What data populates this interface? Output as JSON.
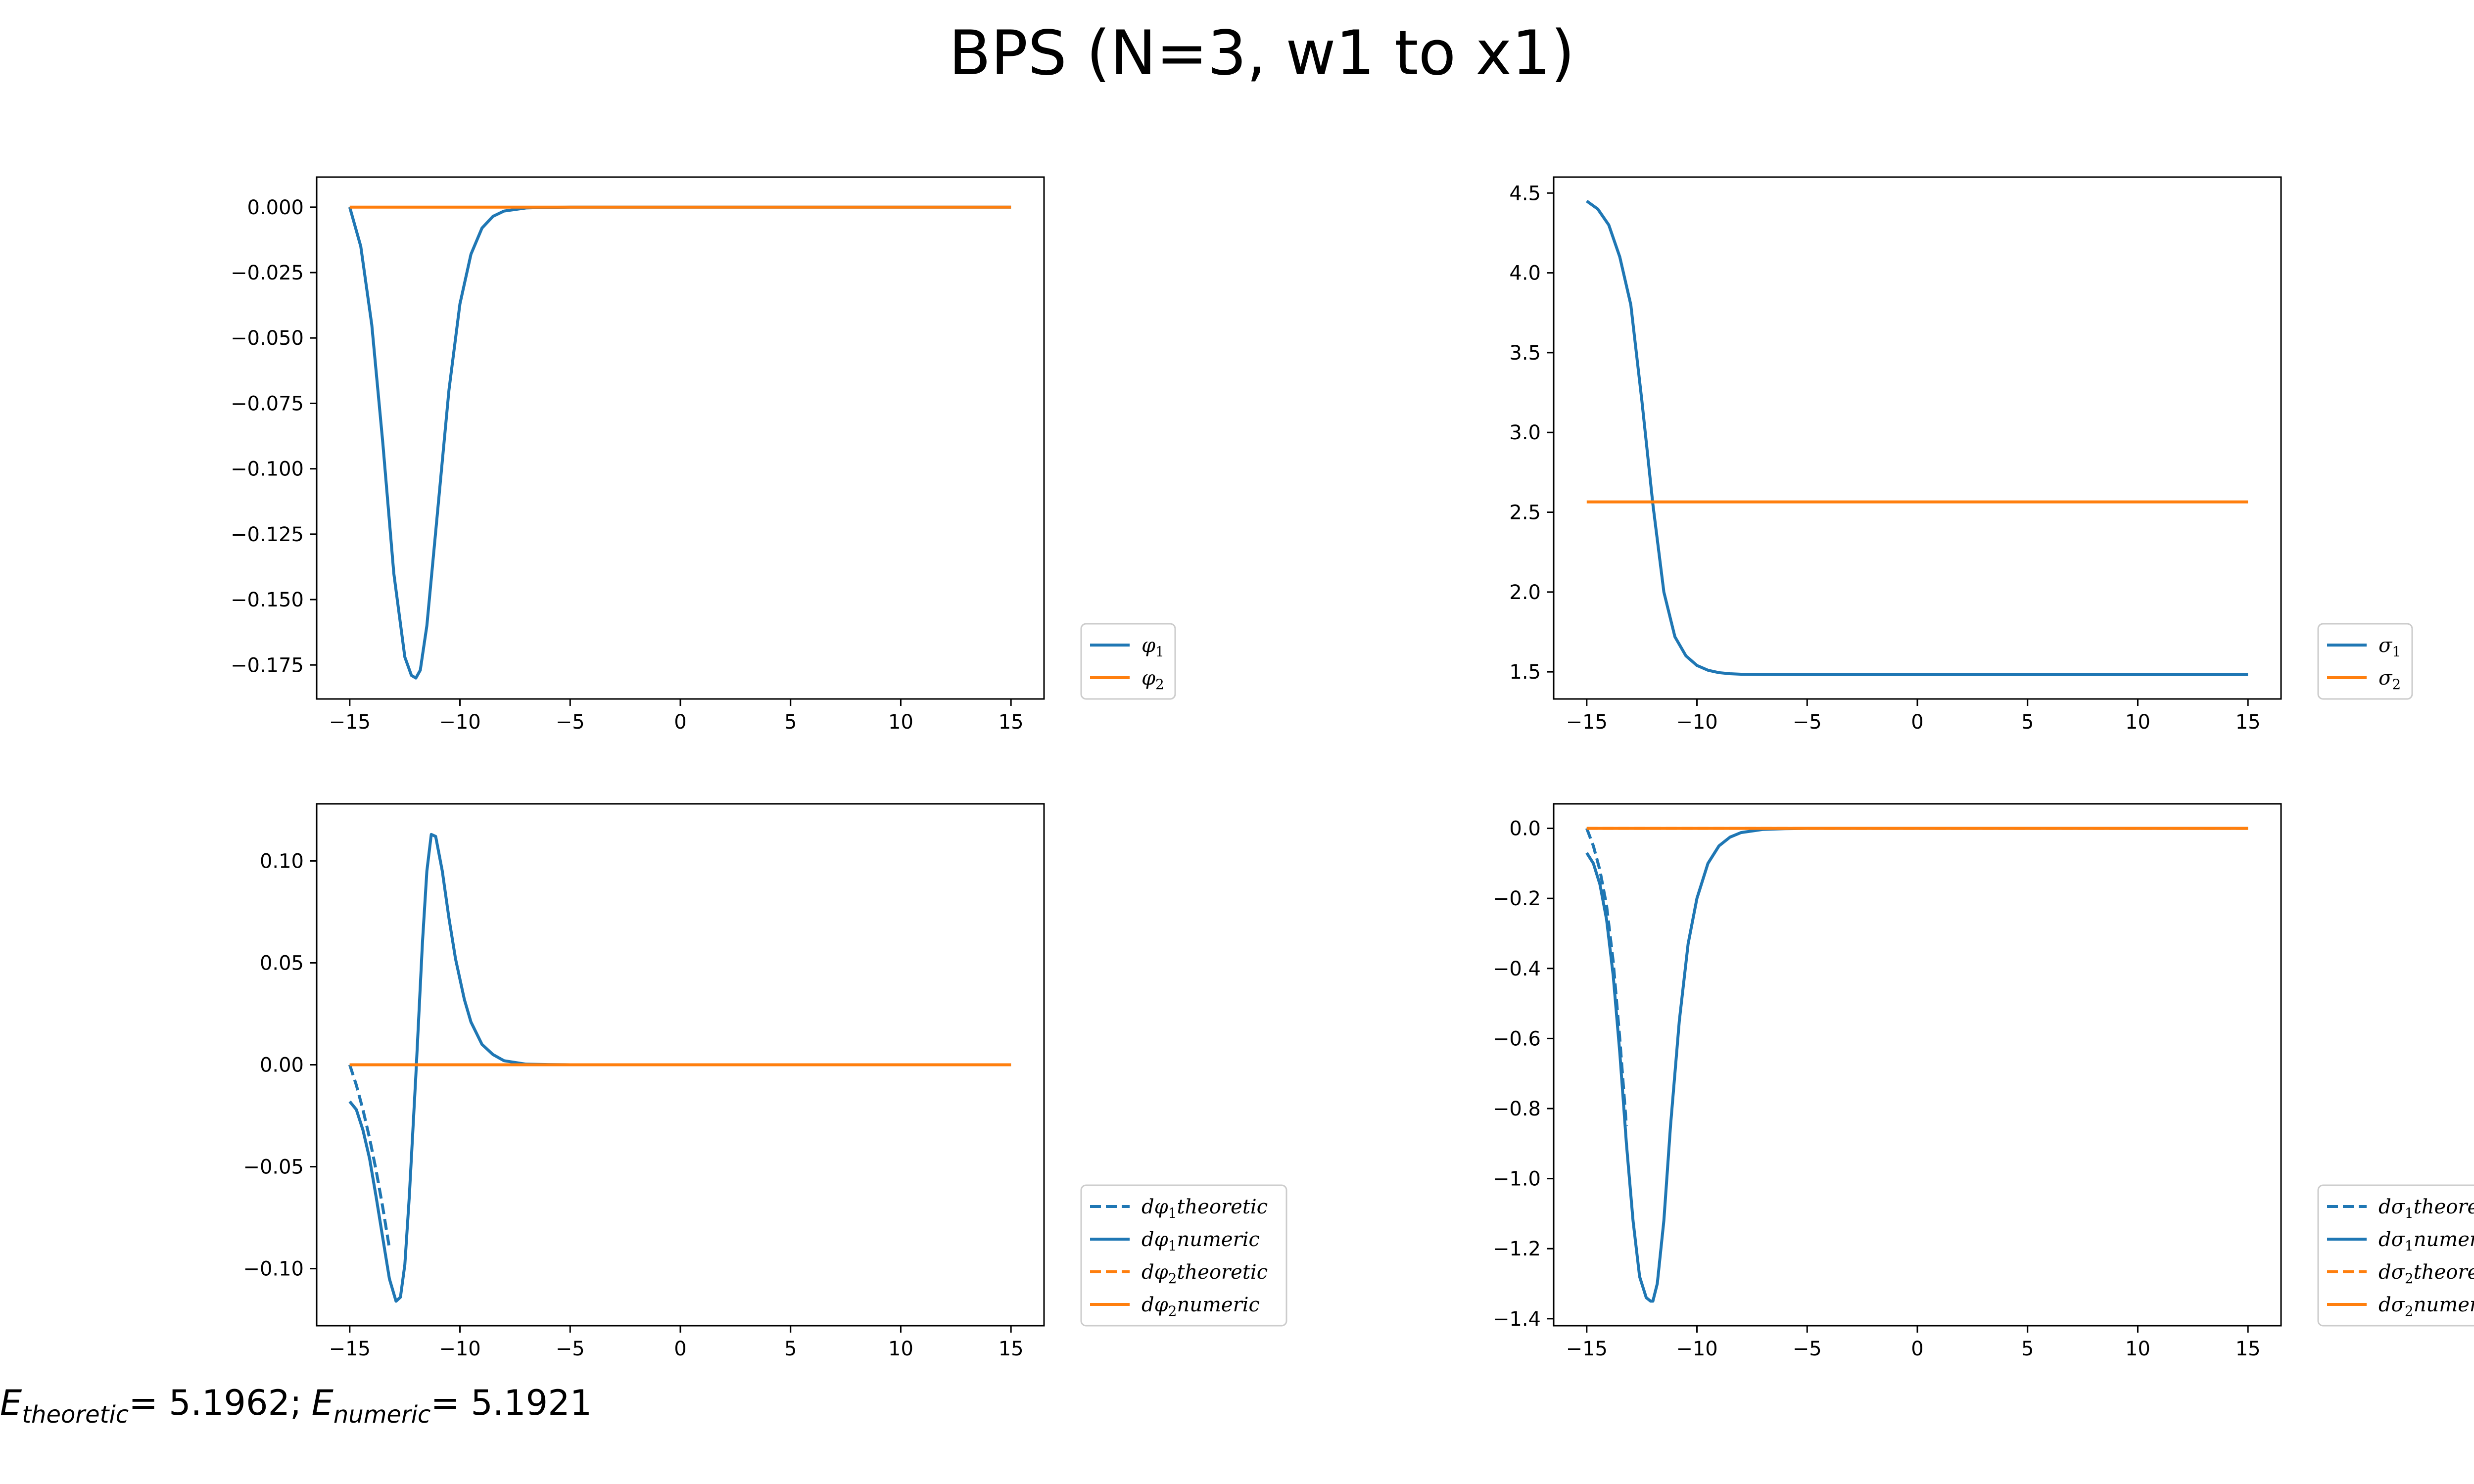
{
  "figure": {
    "title": "BPS (N=3, w1 to x1)",
    "footer": {
      "e_theoretic_label": "E",
      "e_theoretic_sub": "theoretic",
      "e_theoretic_value": "= 5.1962;",
      "e_numeric_label": "E",
      "e_numeric_sub": "numeric",
      "e_numeric_value": "= 5.1921"
    },
    "colors": {
      "blue": "#1f77b4",
      "orange": "#ff7f0e"
    }
  },
  "chart_data": [
    {
      "id": "phi",
      "type": "line",
      "title": "",
      "xlabel": "",
      "ylabel": "",
      "xlim": [
        -16.5,
        16.5
      ],
      "ylim": [
        -0.188,
        0.0115
      ],
      "xticks": [
        -15,
        -10,
        -5,
        0,
        5,
        10,
        15
      ],
      "xtick_labels": [
        "−15",
        "−10",
        "−5",
        "0",
        "5",
        "10",
        "15"
      ],
      "yticks": [
        0.0,
        -0.025,
        -0.05,
        -0.075,
        -0.1,
        -0.125,
        -0.15,
        -0.175
      ],
      "ytick_labels": [
        "0.000",
        "−0.025",
        "−0.050",
        "−0.075",
        "−0.100",
        "−0.125",
        "−0.150",
        "−0.175"
      ],
      "legend_position": "outside-lower-right",
      "series": [
        {
          "name": "φ",
          "sub": "1",
          "color": "#1f77b4",
          "dash": false,
          "x": [
            -15,
            -14.5,
            -14,
            -13.5,
            -13,
            -12.5,
            -12.2,
            -12,
            -11.8,
            -11.5,
            -11,
            -10.5,
            -10,
            -9.5,
            -9,
            -8.5,
            -8,
            -7,
            -6,
            -5,
            0,
            15
          ],
          "y": [
            0,
            -0.015,
            -0.045,
            -0.09,
            -0.14,
            -0.172,
            -0.179,
            -0.18,
            -0.177,
            -0.16,
            -0.115,
            -0.07,
            -0.037,
            -0.018,
            -0.008,
            -0.0035,
            -0.0015,
            -0.0003,
            -5e-05,
            0,
            0,
            0
          ]
        },
        {
          "name": "φ",
          "sub": "2",
          "color": "#ff7f0e",
          "dash": false,
          "x": [
            -15,
            15
          ],
          "y": [
            0,
            0
          ]
        }
      ]
    },
    {
      "id": "sigma",
      "type": "line",
      "title": "",
      "xlabel": "",
      "ylabel": "",
      "xlim": [
        -16.5,
        16.5
      ],
      "ylim": [
        1.33,
        4.6
      ],
      "xticks": [
        -15,
        -10,
        -5,
        0,
        5,
        10,
        15
      ],
      "xtick_labels": [
        "−15",
        "−10",
        "−5",
        "0",
        "5",
        "10",
        "15"
      ],
      "yticks": [
        1.5,
        2.0,
        2.5,
        3.0,
        3.5,
        4.0,
        4.5
      ],
      "ytick_labels": [
        "1.5",
        "2.0",
        "2.5",
        "3.0",
        "3.5",
        "4.0",
        "4.5"
      ],
      "legend_position": "outside-lower-right",
      "series": [
        {
          "name": "σ",
          "sub": "1",
          "color": "#1f77b4",
          "dash": false,
          "x": [
            -15,
            -14.5,
            -14,
            -13.5,
            -13,
            -12.5,
            -12,
            -11.5,
            -11,
            -10.5,
            -10,
            -9.5,
            -9,
            -8.5,
            -8,
            -7,
            -5,
            0,
            15
          ],
          "y": [
            4.45,
            4.4,
            4.3,
            4.1,
            3.8,
            3.2,
            2.55,
            2.0,
            1.72,
            1.6,
            1.54,
            1.51,
            1.495,
            1.488,
            1.485,
            1.483,
            1.482,
            1.482,
            1.482
          ]
        },
        {
          "name": "σ",
          "sub": "2",
          "color": "#ff7f0e",
          "dash": false,
          "x": [
            -15,
            15
          ],
          "y": [
            2.565,
            2.565
          ]
        }
      ]
    },
    {
      "id": "dphi",
      "type": "line",
      "title": "",
      "xlabel": "",
      "ylabel": "",
      "xlim": [
        -16.5,
        16.5
      ],
      "ylim": [
        -0.128,
        0.128
      ],
      "xticks": [
        -15,
        -10,
        -5,
        0,
        5,
        10,
        15
      ],
      "xtick_labels": [
        "−15",
        "−10",
        "−5",
        "0",
        "5",
        "10",
        "15"
      ],
      "yticks": [
        0.1,
        0.05,
        0.0,
        -0.05,
        -0.1
      ],
      "ytick_labels": [
        "0.10",
        "0.05",
        "0.00",
        "−0.05",
        "−0.10"
      ],
      "legend_position": "outside-lower-right",
      "series": [
        {
          "name": "dφ",
          "sub": "1",
          "suffix": "theoretic",
          "color": "#1f77b4",
          "dash": true,
          "x": [
            -15,
            -14.7,
            -14.4,
            -14.1,
            -13.8,
            -13.5,
            -13.2
          ],
          "y": [
            0,
            -0.01,
            -0.022,
            -0.036,
            -0.052,
            -0.07,
            -0.09
          ]
        },
        {
          "name": "dφ",
          "sub": "1",
          "suffix": "numeric",
          "color": "#1f77b4",
          "dash": false,
          "x": [
            -15,
            -14.7,
            -14.4,
            -14.1,
            -13.8,
            -13.5,
            -13.2,
            -12.9,
            -12.7,
            -12.5,
            -12.3,
            -12,
            -11.7,
            -11.5,
            -11.3,
            -11.1,
            -10.8,
            -10.5,
            -10.2,
            -9.8,
            -9.5,
            -9,
            -8.5,
            -8,
            -7,
            -6,
            -5,
            0,
            15
          ],
          "y": [
            -0.018,
            -0.022,
            -0.032,
            -0.046,
            -0.065,
            -0.085,
            -0.105,
            -0.116,
            -0.114,
            -0.098,
            -0.065,
            -0.005,
            0.06,
            0.095,
            0.113,
            0.112,
            0.095,
            0.072,
            0.052,
            0.032,
            0.021,
            0.01,
            0.005,
            0.002,
            0.0003,
            0.0001,
            0,
            0,
            0
          ]
        },
        {
          "name": "dφ",
          "sub": "2",
          "suffix": "theoretic",
          "color": "#ff7f0e",
          "dash": true,
          "x": [
            -15,
            15
          ],
          "y": [
            0,
            0
          ]
        },
        {
          "name": "dφ",
          "sub": "2",
          "suffix": "numeric",
          "color": "#ff7f0e",
          "dash": false,
          "x": [
            -15,
            15
          ],
          "y": [
            0,
            0
          ]
        }
      ]
    },
    {
      "id": "dsigma",
      "type": "line",
      "title": "",
      "xlabel": "",
      "ylabel": "",
      "xlim": [
        -16.5,
        16.5
      ],
      "ylim": [
        -1.42,
        0.07
      ],
      "xticks": [
        -15,
        -10,
        -5,
        0,
        5,
        10,
        15
      ],
      "xtick_labels": [
        "−15",
        "−10",
        "−5",
        "0",
        "5",
        "10",
        "15"
      ],
      "yticks": [
        0.0,
        -0.2,
        -0.4,
        -0.6,
        -0.8,
        -1.0,
        -1.2,
        -1.4
      ],
      "ytick_labels": [
        "0.0",
        "−0.2",
        "−0.4",
        "−0.6",
        "−0.8",
        "−1.0",
        "−1.2",
        "−1.4"
      ],
      "legend_position": "outside-lower-right",
      "series": [
        {
          "name": "dσ",
          "sub": "1",
          "suffix": "theoretic",
          "color": "#1f77b4",
          "dash": true,
          "x": [
            -15,
            -14.7,
            -14.4,
            -14.1,
            -13.8,
            -13.5,
            -13.2
          ],
          "y": [
            0,
            -0.05,
            -0.12,
            -0.22,
            -0.38,
            -0.6,
            -0.85
          ]
        },
        {
          "name": "dσ",
          "sub": "1",
          "suffix": "numeric",
          "color": "#1f77b4",
          "dash": false,
          "x": [
            -15,
            -14.7,
            -14.4,
            -14.1,
            -13.8,
            -13.5,
            -13.2,
            -12.9,
            -12.6,
            -12.3,
            -12.1,
            -12,
            -11.8,
            -11.5,
            -11.2,
            -10.8,
            -10.4,
            -10,
            -9.5,
            -9,
            -8.5,
            -8,
            -7,
            -6,
            -5,
            0,
            15
          ],
          "y": [
            -0.07,
            -0.1,
            -0.16,
            -0.26,
            -0.42,
            -0.64,
            -0.9,
            -1.12,
            -1.28,
            -1.34,
            -1.35,
            -1.35,
            -1.3,
            -1.12,
            -0.85,
            -0.55,
            -0.33,
            -0.2,
            -0.1,
            -0.05,
            -0.025,
            -0.012,
            -0.003,
            -0.001,
            0,
            0,
            0
          ]
        },
        {
          "name": "dσ",
          "sub": "2",
          "suffix": "theoretic",
          "color": "#ff7f0e",
          "dash": true,
          "x": [
            -15,
            15
          ],
          "y": [
            0,
            0
          ]
        },
        {
          "name": "dσ",
          "sub": "2",
          "suffix": "numeric",
          "color": "#ff7f0e",
          "dash": false,
          "x": [
            -15,
            15
          ],
          "y": [
            0,
            0
          ]
        }
      ]
    }
  ]
}
